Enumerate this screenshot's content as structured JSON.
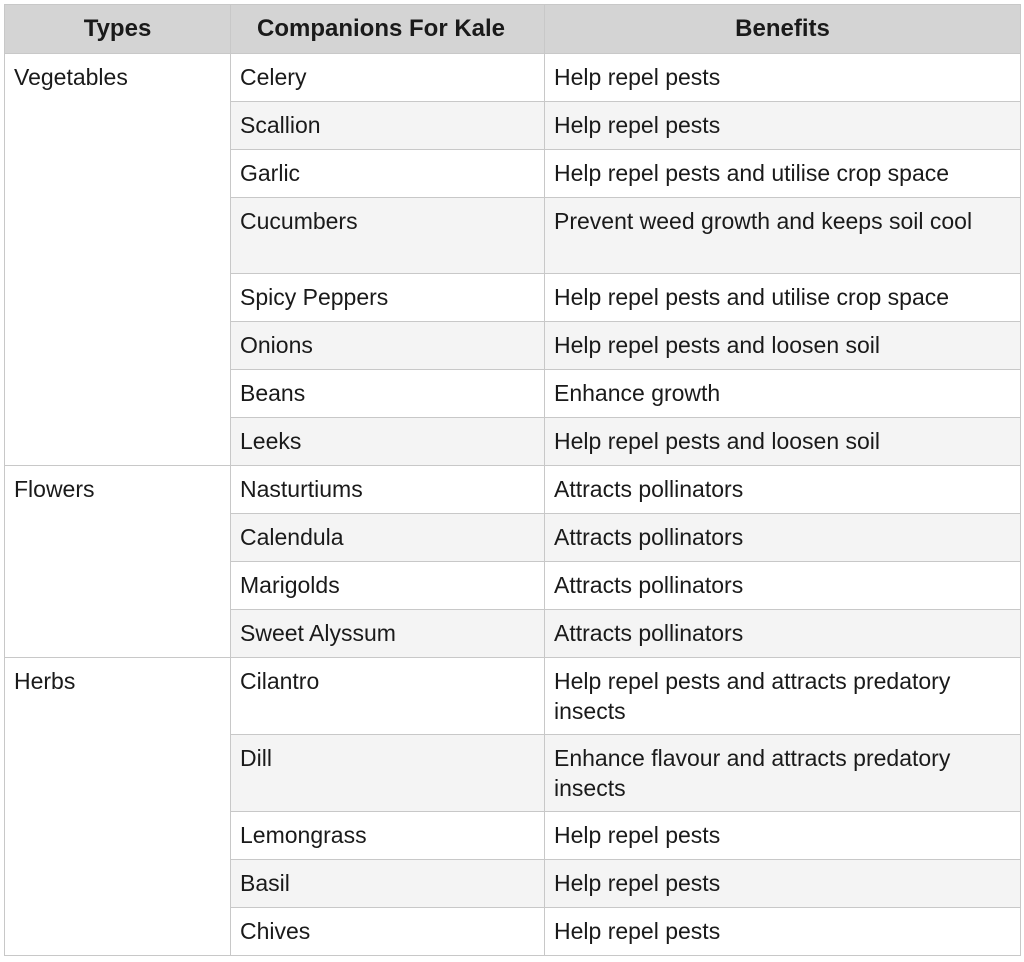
{
  "table": {
    "headers": [
      "Types",
      "Companions For Kale",
      "Benefits"
    ],
    "groups": [
      {
        "type": "Vegetables",
        "rows": [
          {
            "companion": "Celery",
            "benefit": "Help repel pests"
          },
          {
            "companion": "Scallion",
            "benefit": "Help repel pests"
          },
          {
            "companion": "Garlic",
            "benefit": "Help repel pests and utilise crop space"
          },
          {
            "companion": "Cucumbers",
            "benefit": "Prevent weed growth and keeps soil cool"
          },
          {
            "companion": "Spicy Peppers",
            "benefit": "Help repel pests and utilise crop space"
          },
          {
            "companion": "Onions",
            "benefit": "Help repel pests and loosen soil"
          },
          {
            "companion": "Beans",
            "benefit": "Enhance growth"
          },
          {
            "companion": "Leeks",
            "benefit": "Help repel pests and loosen soil"
          }
        ]
      },
      {
        "type": "Flowers",
        "rows": [
          {
            "companion": "Nasturtiums",
            "benefit": "Attracts pollinators"
          },
          {
            "companion": "Calendula",
            "benefit": "Attracts pollinators"
          },
          {
            "companion": "Marigolds",
            "benefit": "Attracts pollinators"
          },
          {
            "companion": "Sweet Alyssum",
            "benefit": "Attracts pollinators"
          }
        ]
      },
      {
        "type": "Herbs",
        "rows": [
          {
            "companion": "Cilantro",
            "benefit": "Help repel pests and attracts predatory insects"
          },
          {
            "companion": "Dill",
            "benefit": "Enhance flavour and attracts predatory insects"
          },
          {
            "companion": "Lemongrass",
            "benefit": "Help repel pests"
          },
          {
            "companion": "Basil",
            "benefit": "Help repel pests"
          },
          {
            "companion": "Chives",
            "benefit": "Help repel pests"
          }
        ]
      }
    ]
  }
}
